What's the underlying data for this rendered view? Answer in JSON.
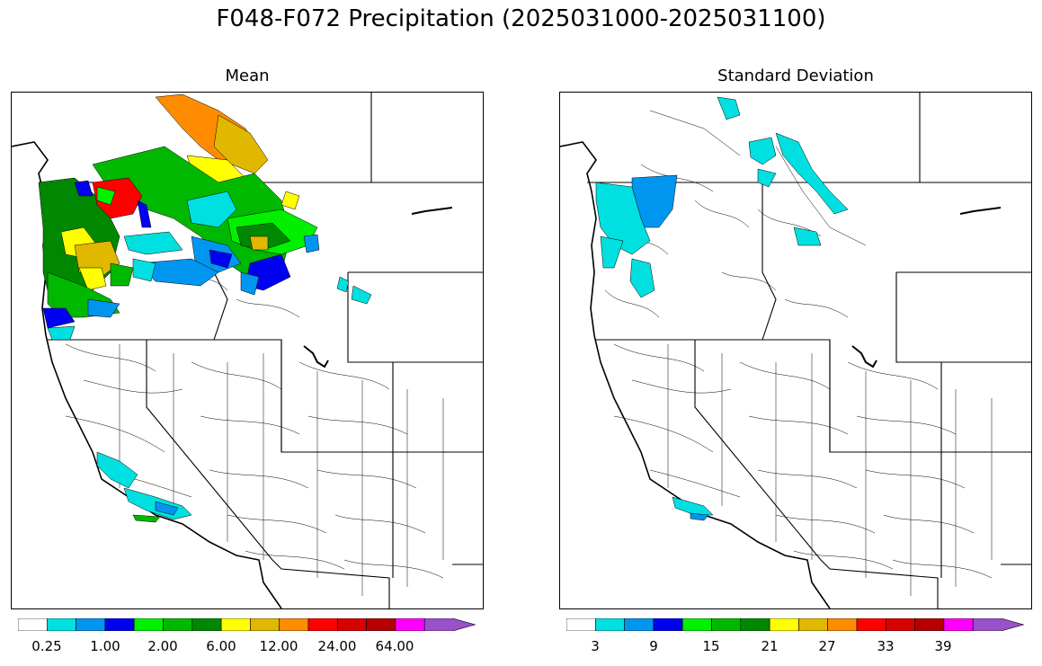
{
  "title": "F048-F072 Precipitation (2025031000-2025031100)",
  "panels": {
    "left": {
      "title": "Mean"
    },
    "right": {
      "title": "Standard Deviation"
    }
  },
  "colorbar": {
    "colors": [
      "#ffffff",
      "#00e0e0",
      "#0096f0",
      "#0000f0",
      "#00f000",
      "#00b800",
      "#008800",
      "#ffff00",
      "#e0b800",
      "#ff8c00",
      "#ff0000",
      "#d80000",
      "#b40000",
      "#ff00ff",
      "#9a50c8"
    ],
    "left_ticks": [
      "0.25",
      "1.00",
      "2.00",
      "6.00",
      "12.00",
      "24.00",
      "64.00"
    ],
    "right_ticks": [
      "3",
      "9",
      "15",
      "21",
      "27",
      "33",
      "39"
    ]
  }
}
